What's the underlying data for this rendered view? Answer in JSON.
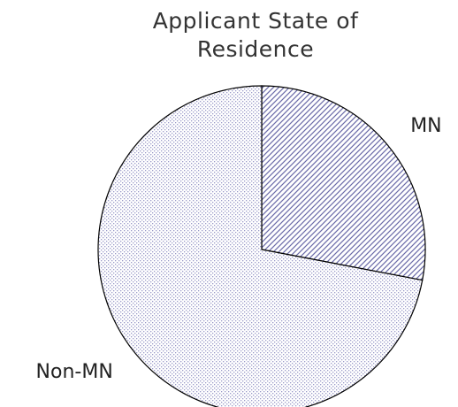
{
  "chart_data": {
    "type": "pie",
    "title": "Applicant State of Residence",
    "categories": [
      "MN",
      "Non-MN"
    ],
    "values": [
      28,
      72
    ],
    "colors": [
      "#6a6aa8",
      "#9a9ac8"
    ]
  }
}
